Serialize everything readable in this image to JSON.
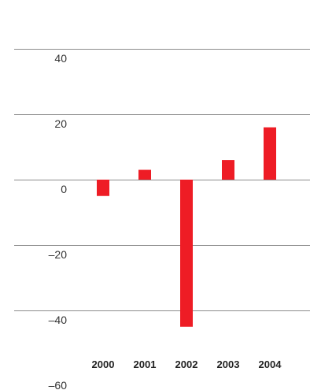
{
  "chart_data": {
    "type": "bar",
    "categories": [
      "2000",
      "2001",
      "2002",
      "2003",
      "2004"
    ],
    "values": [
      -5,
      3,
      -45,
      6,
      16
    ],
    "y_ticks": [
      {
        "value": 40,
        "label": "40"
      },
      {
        "value": 20,
        "label": "20"
      },
      {
        "value": 0,
        "label": "0"
      },
      {
        "value": -20,
        "label": "–20"
      },
      {
        "value": -40,
        "label": "–40"
      },
      {
        "value": -60,
        "label": "–60"
      }
    ],
    "gridlines": [
      40,
      20,
      0,
      -20,
      -40
    ],
    "ylim": [
      -60,
      40
    ],
    "title": "",
    "xlabel": "",
    "ylabel": "",
    "grid": true,
    "bar_color": "#ee1c25",
    "gridline_color": "#8c8c8c"
  }
}
